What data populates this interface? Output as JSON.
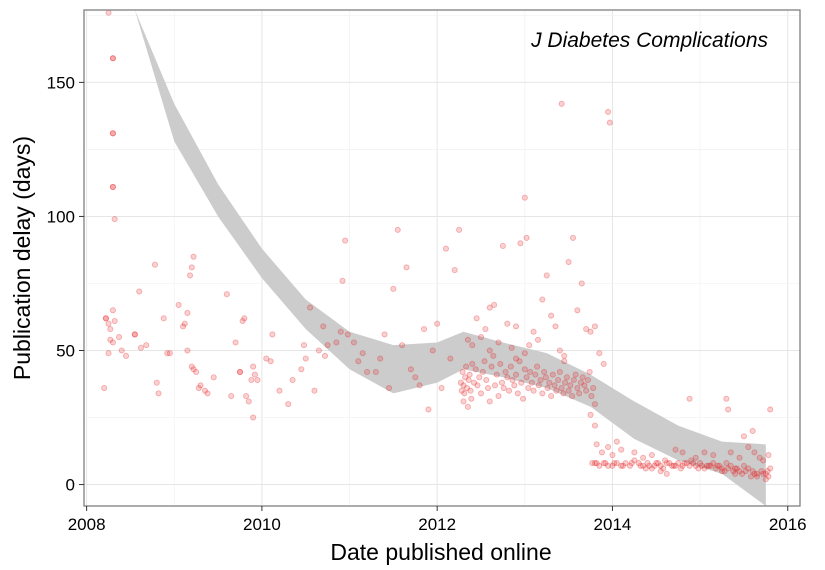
{
  "chart_data": {
    "type": "scatter",
    "title": "",
    "annotation": "J Diabetes Complications",
    "xlabel": "Date published online",
    "ylabel": "Publication delay (days)",
    "xlim": [
      2007.97,
      2016.14
    ],
    "ylim": [
      -8,
      177
    ],
    "x_ticks": [
      2008,
      2010,
      2012,
      2014,
      2016
    ],
    "x_tick_labels": [
      "2008",
      "2010",
      "2012",
      "2014",
      "2016"
    ],
    "y_ticks": [
      0,
      50,
      100,
      150
    ],
    "y_tick_labels": [
      "0",
      "50",
      "100",
      "150"
    ],
    "grid": true,
    "point_color": "#e41a1c",
    "point_opacity": 0.2,
    "smooth_band_color": "#cccccc",
    "smooth_band": [
      {
        "x": 2008.55,
        "lo": 177,
        "hi": 177
      },
      {
        "x": 2009.0,
        "lo": 128,
        "hi": 142
      },
      {
        "x": 2009.5,
        "lo": 100,
        "hi": 112
      },
      {
        "x": 2010.0,
        "lo": 77,
        "hi": 88
      },
      {
        "x": 2010.5,
        "lo": 58,
        "hi": 69
      },
      {
        "x": 2011.0,
        "lo": 43,
        "hi": 57
      },
      {
        "x": 2011.5,
        "lo": 34,
        "hi": 52
      },
      {
        "x": 2012.0,
        "lo": 38,
        "hi": 53
      },
      {
        "x": 2012.3,
        "lo": 43,
        "hi": 57
      },
      {
        "x": 2012.75,
        "lo": 40,
        "hi": 53
      },
      {
        "x": 2013.25,
        "lo": 36,
        "hi": 49
      },
      {
        "x": 2013.75,
        "lo": 29,
        "hi": 41
      },
      {
        "x": 2014.25,
        "lo": 17,
        "hi": 31
      },
      {
        "x": 2014.75,
        "lo": 9,
        "hi": 22
      },
      {
        "x": 2015.25,
        "lo": 4,
        "hi": 16
      },
      {
        "x": 2015.75,
        "lo": -8,
        "hi": 15
      }
    ],
    "points": [
      [
        2008.25,
        176
      ],
      [
        2008.3,
        159
      ],
      [
        2008.3,
        159
      ],
      [
        2008.3,
        131
      ],
      [
        2008.3,
        131
      ],
      [
        2008.3,
        111
      ],
      [
        2008.3,
        111
      ],
      [
        2008.32,
        99
      ],
      [
        2008.22,
        62
      ],
      [
        2008.22,
        62
      ],
      [
        2008.25,
        60
      ],
      [
        2008.27,
        58
      ],
      [
        2008.3,
        65
      ],
      [
        2008.32,
        61
      ],
      [
        2008.27,
        54
      ],
      [
        2008.3,
        53
      ],
      [
        2008.37,
        55
      ],
      [
        2008.25,
        49
      ],
      [
        2008.4,
        50
      ],
      [
        2008.45,
        48
      ],
      [
        2008.2,
        36
      ],
      [
        2008.55,
        56
      ],
      [
        2008.55,
        56
      ],
      [
        2008.6,
        72
      ],
      [
        2008.62,
        51
      ],
      [
        2008.68,
        52
      ],
      [
        2008.78,
        82
      ],
      [
        2008.8,
        38
      ],
      [
        2008.82,
        34
      ],
      [
        2008.88,
        62
      ],
      [
        2008.92,
        49
      ],
      [
        2008.95,
        49
      ],
      [
        2009.05,
        67
      ],
      [
        2009.1,
        59
      ],
      [
        2009.12,
        60
      ],
      [
        2009.15,
        64
      ],
      [
        2009.18,
        78
      ],
      [
        2009.2,
        81
      ],
      [
        2009.22,
        85
      ],
      [
        2009.15,
        50
      ],
      [
        2009.2,
        44
      ],
      [
        2009.22,
        43
      ],
      [
        2009.25,
        42
      ],
      [
        2009.28,
        36
      ],
      [
        2009.3,
        37
      ],
      [
        2009.35,
        35
      ],
      [
        2009.38,
        34
      ],
      [
        2009.45,
        40
      ],
      [
        2009.6,
        71
      ],
      [
        2009.65,
        33
      ],
      [
        2009.7,
        53
      ],
      [
        2009.75,
        42
      ],
      [
        2009.75,
        42
      ],
      [
        2009.78,
        61
      ],
      [
        2009.8,
        62
      ],
      [
        2009.82,
        33
      ],
      [
        2009.85,
        31
      ],
      [
        2009.88,
        39
      ],
      [
        2009.9,
        44
      ],
      [
        2009.92,
        41
      ],
      [
        2009.95,
        39
      ],
      [
        2009.9,
        25
      ],
      [
        2010.05,
        47
      ],
      [
        2010.1,
        46
      ],
      [
        2010.12,
        56
      ],
      [
        2010.2,
        35
      ],
      [
        2010.3,
        30
      ],
      [
        2010.35,
        39
      ],
      [
        2010.45,
        43
      ],
      [
        2010.48,
        52
      ],
      [
        2010.5,
        47
      ],
      [
        2010.55,
        66
      ],
      [
        2010.6,
        35
      ],
      [
        2010.65,
        50
      ],
      [
        2010.7,
        59
      ],
      [
        2010.72,
        48
      ],
      [
        2010.75,
        52
      ],
      [
        2010.85,
        53
      ],
      [
        2010.9,
        57
      ],
      [
        2010.92,
        76
      ],
      [
        2010.95,
        91
      ],
      [
        2010.98,
        56
      ],
      [
        2011.05,
        53
      ],
      [
        2011.1,
        46
      ],
      [
        2011.15,
        49
      ],
      [
        2011.2,
        42
      ],
      [
        2011.3,
        42
      ],
      [
        2011.35,
        47
      ],
      [
        2011.4,
        56
      ],
      [
        2011.45,
        36
      ],
      [
        2011.5,
        73
      ],
      [
        2011.55,
        95
      ],
      [
        2011.6,
        52
      ],
      [
        2011.65,
        81
      ],
      [
        2011.7,
        43
      ],
      [
        2011.75,
        40
      ],
      [
        2011.8,
        37
      ],
      [
        2011.85,
        58
      ],
      [
        2011.9,
        28
      ],
      [
        2011.95,
        50
      ],
      [
        2012.0,
        60
      ],
      [
        2012.05,
        36
      ],
      [
        2012.1,
        88
      ],
      [
        2012.15,
        47
      ],
      [
        2012.2,
        80
      ],
      [
        2012.25,
        95
      ],
      [
        2012.27,
        38
      ],
      [
        2012.28,
        35
      ],
      [
        2012.29,
        42
      ],
      [
        2012.3,
        37
      ],
      [
        2012.3,
        31
      ],
      [
        2012.31,
        34
      ],
      [
        2012.32,
        40
      ],
      [
        2012.33,
        44
      ],
      [
        2012.34,
        36
      ],
      [
        2012.35,
        29
      ],
      [
        2012.36,
        39
      ],
      [
        2012.37,
        41
      ],
      [
        2012.38,
        35
      ],
      [
        2012.39,
        32
      ],
      [
        2012.4,
        45
      ],
      [
        2012.42,
        38
      ],
      [
        2012.44,
        43
      ],
      [
        2012.46,
        37
      ],
      [
        2012.48,
        40
      ],
      [
        2012.5,
        34
      ],
      [
        2012.52,
        42
      ],
      [
        2012.54,
        46
      ],
      [
        2012.56,
        39
      ],
      [
        2012.58,
        36
      ],
      [
        2012.6,
        31
      ],
      [
        2012.62,
        44
      ],
      [
        2012.64,
        48
      ],
      [
        2012.66,
        37
      ],
      [
        2012.68,
        41
      ],
      [
        2012.7,
        33
      ],
      [
        2012.72,
        45
      ],
      [
        2012.74,
        38
      ],
      [
        2012.76,
        36
      ],
      [
        2012.78,
        42
      ],
      [
        2012.8,
        40
      ],
      [
        2012.82,
        35
      ],
      [
        2012.84,
        44
      ],
      [
        2012.86,
        39
      ],
      [
        2012.88,
        37
      ],
      [
        2012.9,
        41
      ],
      [
        2012.92,
        34
      ],
      [
        2012.94,
        46
      ],
      [
        2012.96,
        38
      ],
      [
        2012.98,
        32
      ],
      [
        2013.0,
        43
      ],
      [
        2013.02,
        40
      ],
      [
        2013.04,
        36
      ],
      [
        2013.06,
        42
      ],
      [
        2013.08,
        38
      ],
      [
        2013.1,
        35
      ],
      [
        2013.12,
        41
      ],
      [
        2013.14,
        44
      ],
      [
        2013.16,
        37
      ],
      [
        2013.18,
        39
      ],
      [
        2013.2,
        34
      ],
      [
        2013.22,
        42
      ],
      [
        2013.24,
        40
      ],
      [
        2013.26,
        36
      ],
      [
        2013.28,
        38
      ],
      [
        2013.3,
        33
      ],
      [
        2013.32,
        41
      ],
      [
        2013.34,
        37
      ],
      [
        2013.36,
        35
      ],
      [
        2013.38,
        39
      ],
      [
        2013.4,
        42
      ],
      [
        2013.42,
        36
      ],
      [
        2013.44,
        34
      ],
      [
        2013.46,
        38
      ],
      [
        2013.48,
        40
      ],
      [
        2013.5,
        35
      ],
      [
        2013.52,
        37
      ],
      [
        2013.54,
        33
      ],
      [
        2013.56,
        39
      ],
      [
        2013.58,
        41
      ],
      [
        2013.6,
        36
      ],
      [
        2013.62,
        34
      ],
      [
        2013.64,
        38
      ],
      [
        2013.66,
        40
      ],
      [
        2013.68,
        37
      ],
      [
        2013.7,
        35
      ],
      [
        2013.72,
        39
      ],
      [
        2013.74,
        42
      ],
      [
        2013.76,
        33
      ],
      [
        2013.78,
        36
      ],
      [
        2013.8,
        30
      ],
      [
        2012.45,
        62
      ],
      [
        2012.5,
        55
      ],
      [
        2012.55,
        58
      ],
      [
        2012.6,
        66
      ],
      [
        2012.65,
        67
      ],
      [
        2012.7,
        53
      ],
      [
        2012.75,
        89
      ],
      [
        2012.8,
        60
      ],
      [
        2012.85,
        51
      ],
      [
        2012.9,
        59
      ],
      [
        2012.95,
        90
      ],
      [
        2013.0,
        107
      ],
      [
        2013.02,
        92
      ],
      [
        2013.05,
        52
      ],
      [
        2013.1,
        57
      ],
      [
        2013.15,
        54
      ],
      [
        2013.2,
        69
      ],
      [
        2013.25,
        78
      ],
      [
        2013.3,
        63
      ],
      [
        2013.35,
        59
      ],
      [
        2013.4,
        50
      ],
      [
        2013.42,
        142
      ],
      [
        2013.45,
        46
      ],
      [
        2013.5,
        83
      ],
      [
        2013.55,
        92
      ],
      [
        2013.6,
        65
      ],
      [
        2013.65,
        75
      ],
      [
        2013.7,
        58
      ],
      [
        2013.75,
        57
      ],
      [
        2013.8,
        59
      ],
      [
        2013.85,
        49
      ],
      [
        2013.9,
        45
      ],
      [
        2013.95,
        139
      ],
      [
        2013.97,
        135
      ],
      [
        2012.35,
        54
      ],
      [
        2012.4,
        52
      ],
      [
        2012.6,
        50
      ],
      [
        2012.9,
        47
      ],
      [
        2013.45,
        48
      ],
      [
        2013.0,
        49
      ],
      [
        2013.75,
        26
      ],
      [
        2013.8,
        22
      ],
      [
        2013.82,
        15
      ],
      [
        2013.88,
        12
      ],
      [
        2013.95,
        14
      ],
      [
        2014.0,
        11
      ],
      [
        2014.05,
        16
      ],
      [
        2014.1,
        13
      ],
      [
        2013.77,
        8
      ],
      [
        2013.8,
        8
      ],
      [
        2013.85,
        7
      ],
      [
        2013.9,
        8
      ],
      [
        2013.95,
        7
      ],
      [
        2014.0,
        7
      ],
      [
        2014.05,
        8
      ],
      [
        2014.1,
        7
      ],
      [
        2014.15,
        8
      ],
      [
        2014.2,
        7
      ],
      [
        2014.25,
        9
      ],
      [
        2014.3,
        8
      ],
      [
        2014.35,
        7
      ],
      [
        2014.4,
        8
      ],
      [
        2014.45,
        6
      ],
      [
        2014.5,
        8
      ],
      [
        2014.55,
        7
      ],
      [
        2014.6,
        9
      ],
      [
        2014.65,
        8
      ],
      [
        2014.7,
        7
      ],
      [
        2014.75,
        8
      ],
      [
        2014.8,
        7
      ],
      [
        2014.85,
        8
      ],
      [
        2014.9,
        9
      ],
      [
        2014.95,
        7
      ],
      [
        2015.0,
        8
      ],
      [
        2015.05,
        6
      ],
      [
        2015.1,
        7
      ],
      [
        2015.15,
        8
      ],
      [
        2015.2,
        7
      ],
      [
        2015.25,
        6
      ],
      [
        2015.3,
        8
      ],
      [
        2015.35,
        7
      ],
      [
        2015.4,
        6
      ],
      [
        2015.45,
        5
      ],
      [
        2015.5,
        7
      ],
      [
        2015.55,
        6
      ],
      [
        2015.6,
        5
      ],
      [
        2015.65,
        4
      ],
      [
        2015.7,
        5
      ],
      [
        2015.75,
        4
      ],
      [
        2015.78,
        3
      ],
      [
        2015.8,
        6
      ],
      [
        2013.82,
        8
      ],
      [
        2013.92,
        8
      ],
      [
        2014.02,
        8
      ],
      [
        2014.12,
        7
      ],
      [
        2014.22,
        8
      ],
      [
        2014.32,
        7
      ],
      [
        2014.42,
        7
      ],
      [
        2014.52,
        8
      ],
      [
        2014.62,
        8
      ],
      [
        2014.72,
        7
      ],
      [
        2014.82,
        8
      ],
      [
        2014.92,
        8
      ],
      [
        2015.02,
        7
      ],
      [
        2015.12,
        7
      ],
      [
        2015.22,
        7
      ],
      [
        2015.32,
        6
      ],
      [
        2015.42,
        6
      ],
      [
        2015.52,
        5
      ],
      [
        2015.62,
        4
      ],
      [
        2015.72,
        4
      ],
      [
        2015.77,
        5
      ],
      [
        2014.25,
        12
      ],
      [
        2014.35,
        10
      ],
      [
        2014.45,
        11
      ],
      [
        2014.55,
        5
      ],
      [
        2014.62,
        4
      ],
      [
        2014.72,
        13
      ],
      [
        2014.8,
        12
      ],
      [
        2014.88,
        32
      ],
      [
        2014.95,
        10
      ],
      [
        2015.05,
        12
      ],
      [
        2015.15,
        11
      ],
      [
        2015.25,
        5
      ],
      [
        2015.3,
        32
      ],
      [
        2015.32,
        28
      ],
      [
        2015.35,
        12
      ],
      [
        2015.4,
        4
      ],
      [
        2015.45,
        10
      ],
      [
        2015.5,
        18
      ],
      [
        2015.55,
        14
      ],
      [
        2015.6,
        20
      ],
      [
        2015.62,
        12
      ],
      [
        2015.68,
        10
      ],
      [
        2015.72,
        9
      ],
      [
        2015.78,
        11
      ],
      [
        2015.8,
        28
      ],
      [
        2015.75,
        2
      ],
      [
        2015.65,
        3
      ],
      [
        2015.58,
        3
      ],
      [
        2015.48,
        4
      ],
      [
        2015.38,
        5
      ],
      [
        2015.28,
        5
      ],
      [
        2015.18,
        6
      ],
      [
        2015.08,
        7
      ],
      [
        2014.98,
        6
      ],
      [
        2014.88,
        7
      ],
      [
        2014.78,
        6
      ],
      [
        2014.68,
        7
      ],
      [
        2014.58,
        6
      ],
      [
        2014.48,
        7
      ],
      [
        2014.38,
        6
      ]
    ]
  }
}
